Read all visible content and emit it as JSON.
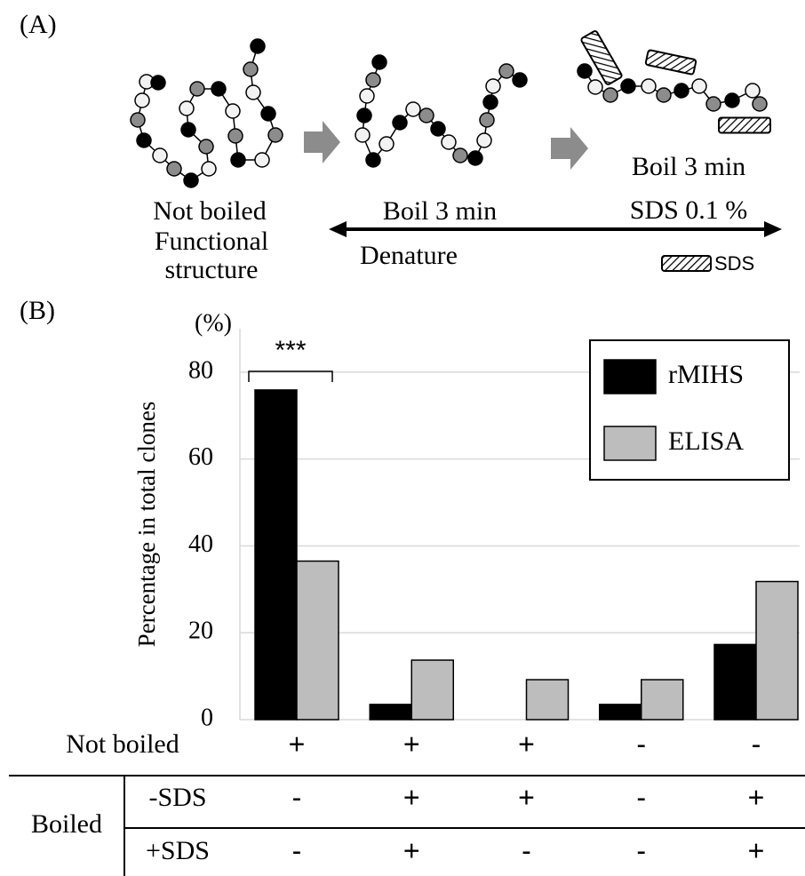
{
  "panel_a": {
    "label": "(A)",
    "not_boiled": [
      "Not boiled",
      "Functional",
      "structure"
    ],
    "boil": "Boil 3 min",
    "boil_sds": [
      "Boil 3 min",
      "SDS 0.1 %"
    ],
    "arrow_label": "Denature",
    "sds_legend": "SDS"
  },
  "chart_data": {
    "type": "bar",
    "panel_label": "(B)",
    "y_unit": "(%)",
    "ylabel": "Percentage in total clones",
    "annotation": "***",
    "series": [
      {
        "name": "rMIHS",
        "color": "#000000",
        "values": [
          75.9,
          3.5,
          0,
          3.5,
          17.3
        ]
      },
      {
        "name": "ELISA",
        "color": "#bdbdbd",
        "values": [
          36.5,
          13.7,
          9.2,
          9.2,
          31.8
        ]
      }
    ],
    "ylim": [
      0,
      90
    ],
    "yticks": [
      0,
      20,
      40,
      60,
      80
    ],
    "grid": true,
    "legend": "upper right",
    "condition_table": {
      "group_label": "Boiled",
      "rows": [
        {
          "label": "Not boiled",
          "cells": [
            "+",
            "+",
            "+",
            "-",
            "-"
          ]
        },
        {
          "label": "-SDS",
          "cells": [
            "-",
            "+",
            "+",
            "-",
            "+"
          ]
        },
        {
          "label": "+SDS",
          "cells": [
            "-",
            "+",
            "-",
            "-",
            "+"
          ]
        }
      ]
    }
  }
}
